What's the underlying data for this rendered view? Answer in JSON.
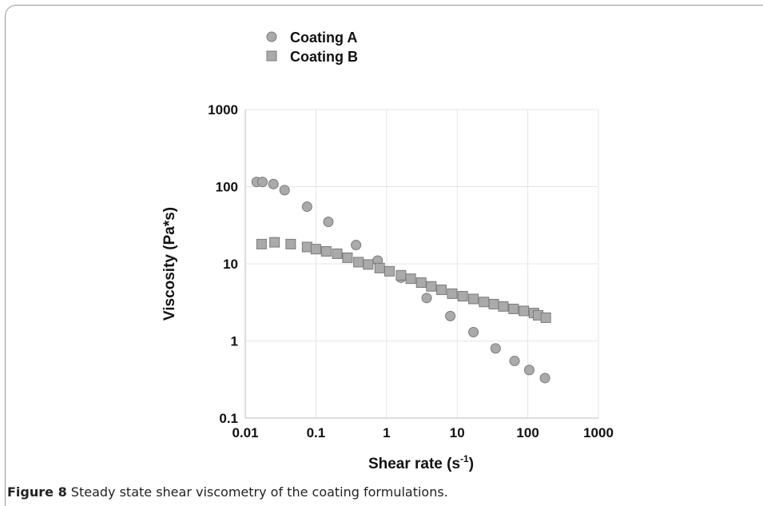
{
  "colors": {
    "marker_fill": "#aaaaaa",
    "marker_stroke": "#7a7a7a",
    "grid": "#e6e6e6",
    "axis": "#bbbbbb"
  },
  "caption": {
    "number": "Figure 8",
    "text": "Steady state shear viscometry of the coating formulations."
  },
  "chart_data": {
    "type": "scatter",
    "xlabel": "Shear rate (s",
    "xlabel_sup": "-1",
    "xlabel_end": ")",
    "ylabel": "Viscosity (Pa*s)",
    "x_scale": "log",
    "y_scale": "log",
    "xlim": [
      0.01,
      1000
    ],
    "ylim": [
      0.1,
      1000
    ],
    "x_ticks": [
      "0.01",
      "0.1",
      "1",
      "10",
      "100",
      "1000"
    ],
    "y_ticks": [
      "0.1",
      "1",
      "10",
      "100",
      "1000"
    ],
    "grid": true,
    "legend_position": "top-left, above plot",
    "series": [
      {
        "name": "Coating A",
        "marker": "circle",
        "points": [
          [
            0.0145,
            115
          ],
          [
            0.0175,
            115
          ],
          [
            0.025,
            108
          ],
          [
            0.036,
            90
          ],
          [
            0.075,
            55
          ],
          [
            0.15,
            35
          ],
          [
            0.37,
            17.5
          ],
          [
            0.75,
            11
          ],
          [
            1.6,
            6.6
          ],
          [
            3.7,
            3.6
          ],
          [
            8,
            2.1
          ],
          [
            17,
            1.3
          ],
          [
            35,
            0.8
          ],
          [
            65,
            0.55
          ],
          [
            105,
            0.42
          ],
          [
            175,
            0.33
          ]
        ]
      },
      {
        "name": "Coating B",
        "marker": "square",
        "points": [
          [
            0.017,
            18
          ],
          [
            0.026,
            19
          ],
          [
            0.044,
            18
          ],
          [
            0.075,
            16.5
          ],
          [
            0.1,
            15.5
          ],
          [
            0.14,
            14.5
          ],
          [
            0.2,
            13.5
          ],
          [
            0.28,
            12
          ],
          [
            0.4,
            10.5
          ],
          [
            0.55,
            9.8
          ],
          [
            0.8,
            8.8
          ],
          [
            1.1,
            8
          ],
          [
            1.6,
            7.1
          ],
          [
            2.2,
            6.4
          ],
          [
            3.1,
            5.7
          ],
          [
            4.3,
            5.1
          ],
          [
            6,
            4.6
          ],
          [
            8.5,
            4.1
          ],
          [
            12,
            3.8
          ],
          [
            17,
            3.5
          ],
          [
            24,
            3.2
          ],
          [
            33,
            3
          ],
          [
            45,
            2.8
          ],
          [
            63,
            2.6
          ],
          [
            88,
            2.45
          ],
          [
            122,
            2.3
          ],
          [
            140,
            2.15
          ],
          [
            180,
            2
          ]
        ]
      }
    ]
  }
}
